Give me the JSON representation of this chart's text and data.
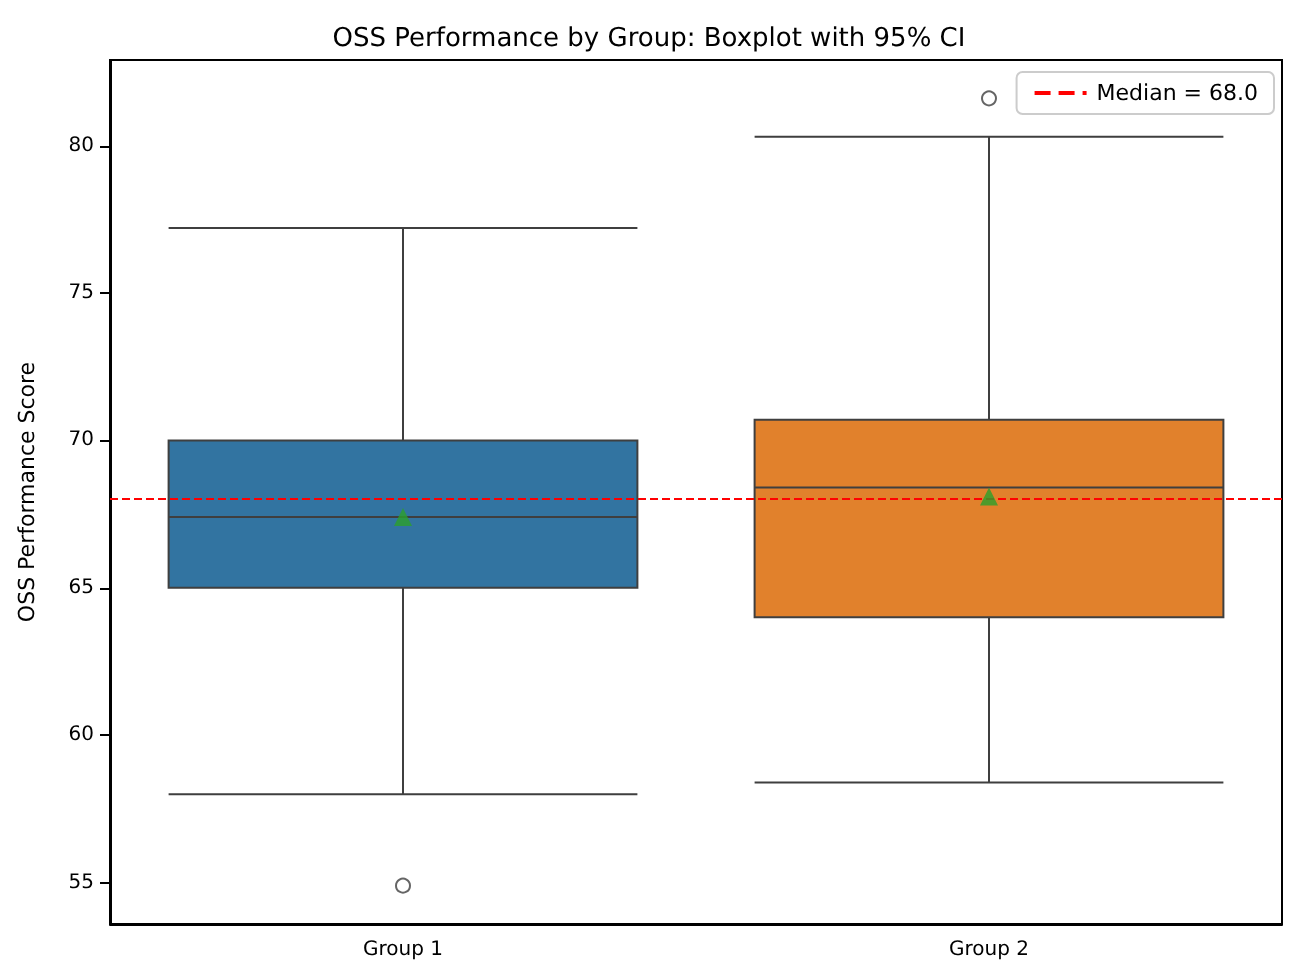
{
  "chart_data": {
    "type": "box",
    "title": "OSS Performance by Group: Boxplot with 95% CI",
    "ylabel": "OSS Performance Score",
    "categories": [
      "Group 1",
      "Group 2"
    ],
    "colors": [
      "#3274a1",
      "#e1812c"
    ],
    "boxes": [
      {
        "low": 58.0,
        "q1": 65.0,
        "median": 67.4,
        "q3": 70.0,
        "high": 77.2,
        "mean": 67.4,
        "outliers": [
          54.9
        ]
      },
      {
        "low": 58.4,
        "q1": 64.0,
        "median": 68.4,
        "q3": 70.7,
        "high": 80.3,
        "mean": 68.1,
        "outliers": [
          81.6
        ]
      }
    ],
    "ylim": [
      53.6,
      82.9
    ],
    "yticks": [
      55,
      60,
      65,
      70,
      75,
      80
    ],
    "ref_lines": [
      {
        "axis": "y",
        "value": 68.0,
        "label": "Median = 68.0",
        "color": "#ff0000",
        "line_style": "dashed"
      }
    ],
    "legend": "top right",
    "grid": false
  }
}
